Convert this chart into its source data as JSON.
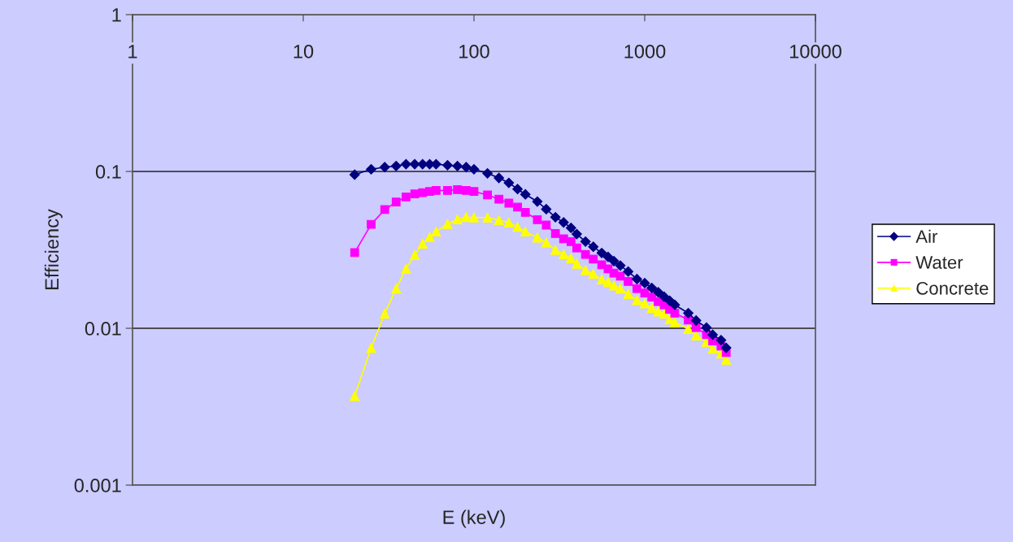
{
  "chart_data": {
    "type": "line",
    "xlabel": "E (keV)",
    "ylabel": "Efficiency",
    "log": "xy",
    "x": [
      20,
      25,
      30,
      35,
      40,
      45,
      50,
      55,
      60,
      70,
      80,
      90,
      100,
      120,
      140,
      160,
      180,
      200,
      235,
      265,
      300,
      335,
      370,
      400,
      450,
      500,
      560,
      610,
      660,
      720,
      800,
      900,
      1000,
      1100,
      1200,
      1300,
      1400,
      1500,
      1800,
      2000,
      2300,
      2500,
      2800,
      3000
    ],
    "xlim": [
      1,
      10000
    ],
    "xticks": [
      1,
      10,
      100,
      1000,
      10000
    ],
    "ylim": [
      0.001,
      1
    ],
    "yticks": [
      0.001,
      0.01,
      0.1,
      1
    ],
    "grid": "y",
    "legend": "right",
    "line_style": "solid",
    "series": [
      {
        "name": "Air",
        "color": "#000080",
        "marker": "diamond",
        "values": [
          0.0954,
          0.1033,
          0.1065,
          0.1083,
          0.1113,
          0.1113,
          0.1113,
          0.1113,
          0.1113,
          0.1096,
          0.1083,
          0.1065,
          0.1033,
          0.0973,
          0.0909,
          0.0846,
          0.0772,
          0.0714,
          0.0643,
          0.0575,
          0.0511,
          0.0473,
          0.0437,
          0.0399,
          0.0357,
          0.0331,
          0.0302,
          0.0285,
          0.0268,
          0.0251,
          0.023,
          0.0206,
          0.0194,
          0.0181,
          0.017,
          0.0159,
          0.015,
          0.0141,
          0.0125,
          0.0112,
          0.0101,
          0.0091,
          0.0084,
          0.0075
        ]
      },
      {
        "name": "Water",
        "color": "#ff00ff",
        "marker": "square",
        "values": [
          0.0304,
          0.046,
          0.0571,
          0.0638,
          0.0688,
          0.0719,
          0.0733,
          0.0745,
          0.0757,
          0.0757,
          0.0766,
          0.0757,
          0.0745,
          0.0708,
          0.0666,
          0.0628,
          0.0592,
          0.0549,
          0.0493,
          0.0455,
          0.0402,
          0.0372,
          0.0357,
          0.0325,
          0.0296,
          0.0276,
          0.0254,
          0.0239,
          0.0225,
          0.0215,
          0.0199,
          0.0179,
          0.0168,
          0.0158,
          0.0148,
          0.0141,
          0.0132,
          0.0125,
          0.0113,
          0.0101,
          0.0091,
          0.0083,
          0.0077,
          0.007
        ]
      },
      {
        "name": "Concrete",
        "color": "#ffff00",
        "marker": "triangle",
        "values": [
          0.0037,
          0.0075,
          0.0124,
          0.0179,
          0.024,
          0.0293,
          0.0346,
          0.0382,
          0.0414,
          0.0462,
          0.0495,
          0.0511,
          0.0508,
          0.0508,
          0.0489,
          0.0472,
          0.0443,
          0.0414,
          0.0379,
          0.0352,
          0.0316,
          0.0296,
          0.0279,
          0.0258,
          0.0235,
          0.0222,
          0.0205,
          0.0197,
          0.0187,
          0.0179,
          0.0165,
          0.0151,
          0.0144,
          0.0135,
          0.0128,
          0.0124,
          0.0114,
          0.0109,
          0.0099,
          0.009,
          0.0082,
          0.0074,
          0.0069,
          0.0063
        ]
      }
    ]
  }
}
